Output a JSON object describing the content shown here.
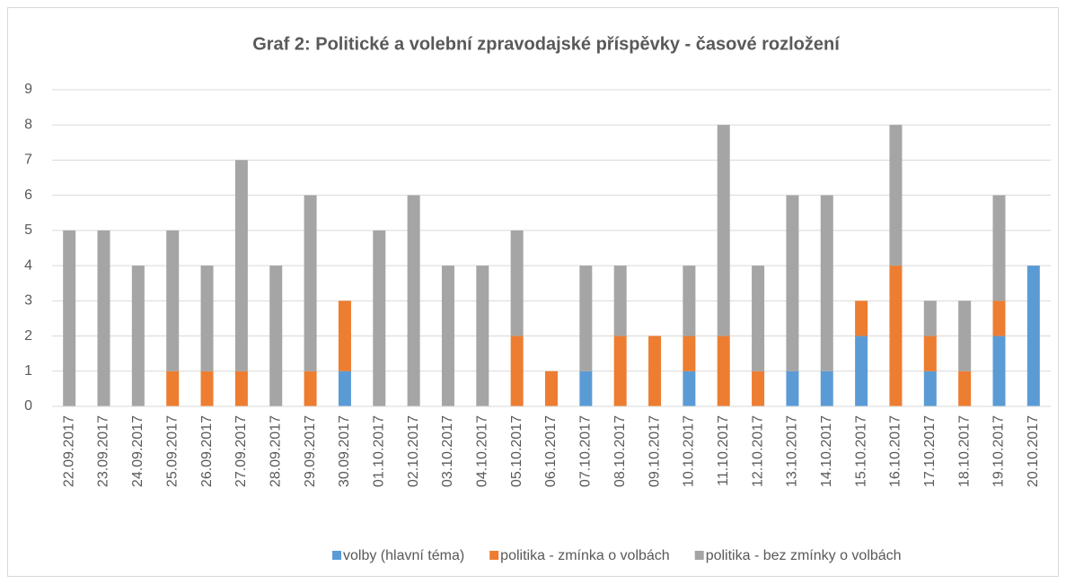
{
  "chart_data": {
    "type": "bar",
    "stacked": true,
    "title": "Graf 2: Politické a volební zpravodajské příspěvky - časové rozložení",
    "categories": [
      "22.09.2017",
      "23.09.2017",
      "24.09.2017",
      "25.09.2017",
      "26.09.2017",
      "27.09.2017",
      "28.09.2017",
      "29.09.2017",
      "30.09.2017",
      "01.10.2017",
      "02.10.2017",
      "03.10.2017",
      "04.10.2017",
      "05.10.2017",
      "06.10.2017",
      "07.10.2017",
      "08.10.2017",
      "09.10.2017",
      "10.10.2017",
      "11.10.2017",
      "12.10.2017",
      "13.10.2017",
      "14.10.2017",
      "15.10.2017",
      "16.10.2017",
      "17.10.2017",
      "18.10.2017",
      "19.10.2017",
      "20.10.2017"
    ],
    "series": [
      {
        "name": "volby (hlavní téma)",
        "color": "#5b9bd5",
        "values": [
          0,
          0,
          0,
          0,
          0,
          0,
          0,
          0,
          1,
          0,
          0,
          0,
          0,
          0,
          0,
          1,
          0,
          0,
          1,
          0,
          0,
          1,
          1,
          2,
          0,
          1,
          0,
          2,
          4
        ]
      },
      {
        "name": "politika - zmínka o volbách",
        "color": "#ed7d31",
        "values": [
          0,
          0,
          0,
          1,
          1,
          1,
          0,
          1,
          2,
          0,
          0,
          0,
          0,
          2,
          1,
          0,
          2,
          2,
          1,
          2,
          1,
          0,
          0,
          1,
          4,
          1,
          1,
          1,
          0
        ]
      },
      {
        "name": "politika - bez zmínky o volbách",
        "color": "#a5a5a5",
        "values": [
          5,
          5,
          4,
          4,
          3,
          6,
          4,
          5,
          0,
          5,
          6,
          4,
          4,
          3,
          0,
          3,
          2,
          0,
          2,
          6,
          3,
          5,
          5,
          0,
          4,
          1,
          2,
          3,
          0
        ]
      }
    ],
    "ylim": [
      0,
      9
    ],
    "yticks": [
      0,
      1,
      2,
      3,
      4,
      5,
      6,
      7,
      8,
      9
    ],
    "grid": true,
    "legend": "bottom"
  }
}
